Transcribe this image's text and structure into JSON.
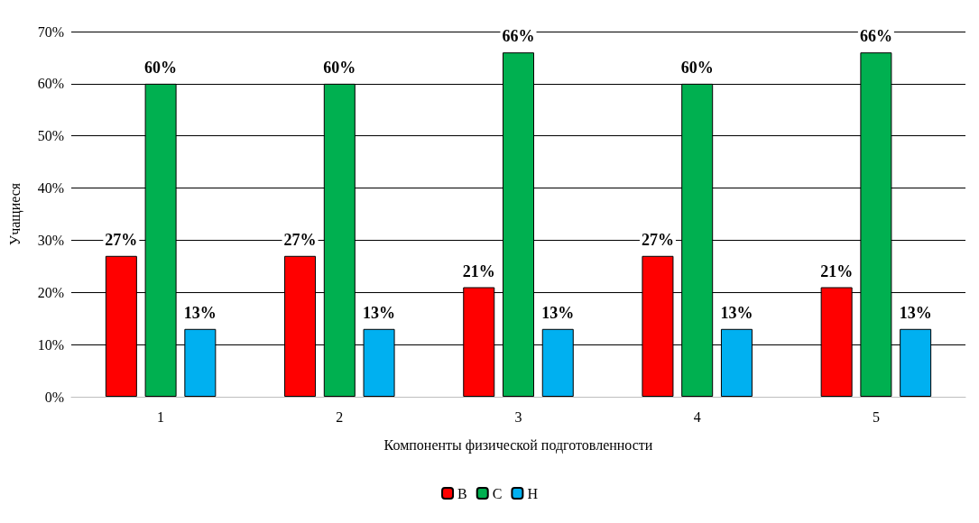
{
  "chart_data": {
    "type": "bar",
    "xlabel": "Компоненты физической подготовленности",
    "ylabel": "Учащиеся",
    "categories": [
      "1",
      "2",
      "3",
      "4",
      "5"
    ],
    "series": [
      {
        "name": "В",
        "color": "#ff0000",
        "values": [
          27,
          27,
          21,
          27,
          21
        ],
        "value_labels": [
          "27%",
          "27%",
          "21%",
          "27%",
          "21%"
        ]
      },
      {
        "name": "С",
        "color": "#00b050",
        "values": [
          60,
          60,
          66,
          60,
          66
        ],
        "value_labels": [
          "60%",
          "60%",
          "66%",
          "60%",
          "66%"
        ]
      },
      {
        "name": "Н",
        "color": "#00b0f0",
        "values": [
          13,
          13,
          13,
          13,
          13
        ],
        "value_labels": [
          "13%",
          "13%",
          "13%",
          "13%",
          "13%"
        ]
      }
    ],
    "ylim": [
      0,
      70
    ],
    "yticks": [
      {
        "value": 0,
        "label": "0%"
      },
      {
        "value": 10,
        "label": "10%"
      },
      {
        "value": 20,
        "label": "20%"
      },
      {
        "value": 30,
        "label": "30%"
      },
      {
        "value": 40,
        "label": "40%"
      },
      {
        "value": 50,
        "label": "50%"
      },
      {
        "value": 60,
        "label": "60%"
      },
      {
        "value": 70,
        "label": "70%"
      }
    ],
    "grid": "y",
    "legend": "bottom"
  }
}
